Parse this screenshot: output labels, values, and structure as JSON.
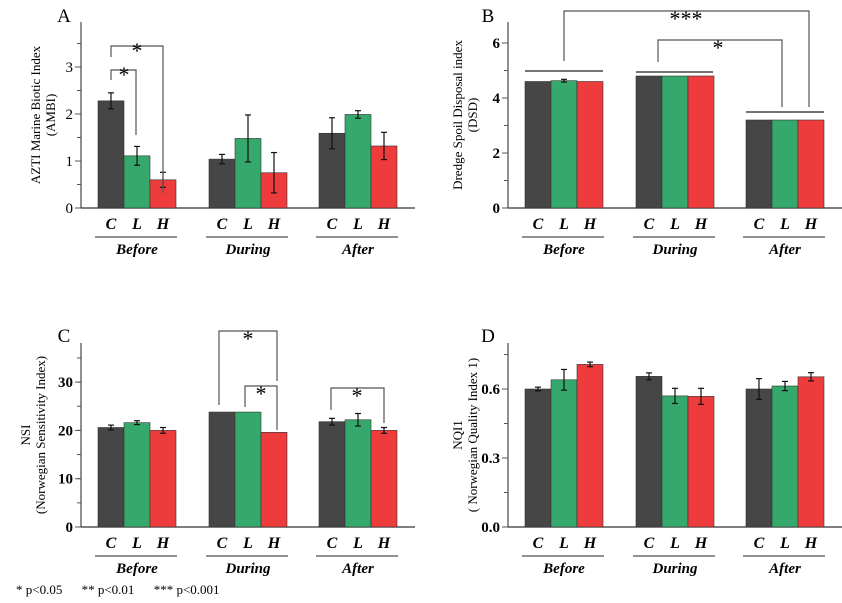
{
  "colors": {
    "C": "#464646",
    "L": "#35a96b",
    "H": "#ee3b3b"
  },
  "chart_data": [
    {
      "panel": "A",
      "type": "bar",
      "ylabel": [
        "AZTI Marine Biotic Index",
        "(AMBI)"
      ],
      "yticks": [
        "0",
        "1",
        "2",
        "3"
      ],
      "tick_bold": false,
      "groups": [
        "Before",
        "During",
        "After"
      ],
      "categories": [
        "C",
        "L",
        "H"
      ],
      "values": [
        [
          2.28,
          1.11,
          0.6
        ],
        [
          1.04,
          1.48,
          0.75
        ],
        [
          1.59,
          1.99,
          1.32
        ]
      ],
      "errors": [
        [
          0.17,
          0.2,
          0.16
        ],
        [
          0.1,
          0.5,
          0.43
        ],
        [
          0.33,
          0.08,
          0.29
        ]
      ],
      "significance": [
        {
          "between": "Before C vs L",
          "label": "*"
        },
        {
          "between": "Before C vs H",
          "label": "*"
        }
      ]
    },
    {
      "panel": "B",
      "type": "bar",
      "ylabel": [
        "Dredge Spoil Disposal index",
        "(DSD)"
      ],
      "yticks": [
        "0",
        "2",
        "4",
        "6"
      ],
      "tick_bold": true,
      "groups": [
        "Before",
        "During",
        "After"
      ],
      "categories": [
        "C",
        "L",
        "H"
      ],
      "values": [
        [
          4.6,
          4.63,
          4.6
        ],
        [
          4.8,
          4.8,
          4.8
        ],
        [
          3.2,
          3.2,
          3.2
        ]
      ],
      "errors": [
        [
          0,
          0.05,
          0
        ],
        [
          0,
          0,
          0
        ],
        [
          0,
          0,
          0
        ]
      ],
      "significance": [
        {
          "between": "Before vs After",
          "label": "***"
        },
        {
          "between": "During vs After",
          "label": "*"
        }
      ]
    },
    {
      "panel": "C",
      "type": "bar",
      "ylabel": [
        "NSI",
        "(Norwegian Sensitivity Index)"
      ],
      "yticks": [
        "0",
        "10",
        "20",
        "30"
      ],
      "tick_bold": true,
      "groups": [
        "Before",
        "During",
        "After"
      ],
      "categories": [
        "C",
        "L",
        "H"
      ],
      "values": [
        [
          20.6,
          21.6,
          20.0
        ],
        [
          23.8,
          23.8,
          19.6
        ],
        [
          21.8,
          22.2,
          20.0
        ]
      ],
      "errors": [
        [
          0.5,
          0.4,
          0.6
        ],
        [
          0,
          0,
          0
        ],
        [
          0.7,
          1.3,
          0.6
        ]
      ],
      "significance": [
        {
          "between": "During C vs H",
          "label": "*"
        },
        {
          "between": "During L vs H",
          "label": "*"
        },
        {
          "between": "After C vs H",
          "label": "*"
        }
      ]
    },
    {
      "panel": "D",
      "type": "bar",
      "ylabel": [
        "NQI1",
        "( Norwegian Quality Index 1)"
      ],
      "yticks": [
        "0.0",
        "0.3",
        "0.6"
      ],
      "tick_bold": true,
      "groups": [
        "Before",
        "During",
        "After"
      ],
      "categories": [
        "C",
        "L",
        "H"
      ],
      "values": [
        [
          0.6,
          0.64,
          0.707
        ],
        [
          0.655,
          0.57,
          0.568
        ],
        [
          0.6,
          0.613,
          0.653
        ]
      ],
      "errors": [
        [
          0.008,
          0.045,
          0.01
        ],
        [
          0.015,
          0.033,
          0.035
        ],
        [
          0.045,
          0.02,
          0.018
        ]
      ],
      "significance": []
    }
  ],
  "footnote": [
    "* p<0.05",
    "** p<0.01",
    "*** p<0.001"
  ]
}
